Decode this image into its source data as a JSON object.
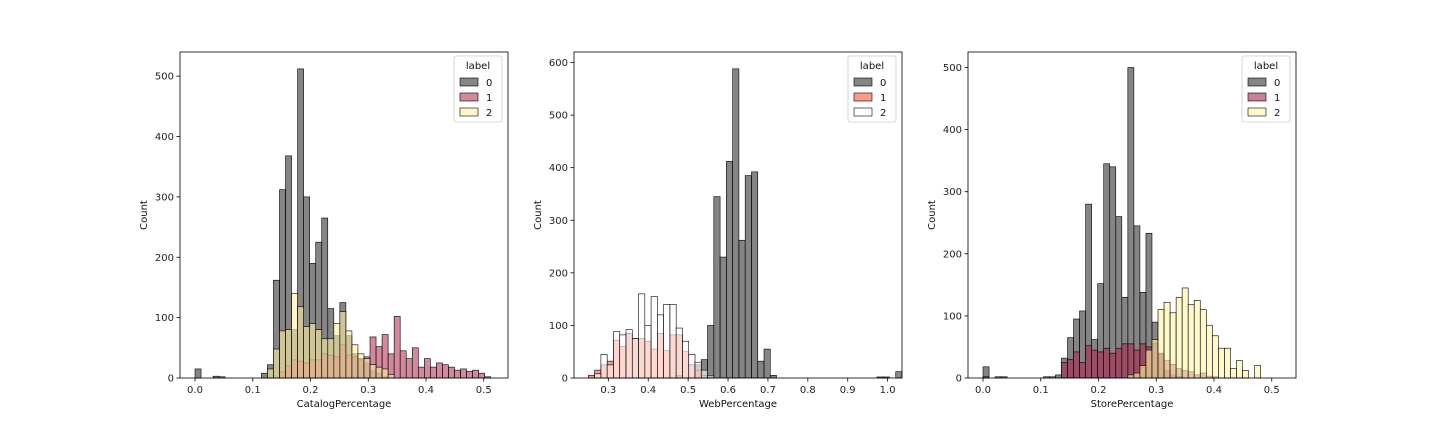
{
  "chart_data": [
    {
      "type": "bar",
      "xlabel": "CatalogPercentage",
      "ylabel": "Count",
      "xlim": [
        -0.026,
        0.542
      ],
      "ylim": [
        0,
        540
      ],
      "xticks": [
        0.0,
        0.1,
        0.2,
        0.3,
        0.4,
        0.5
      ],
      "xtick_labels": [
        "0.0",
        "0.1",
        "0.2",
        "0.3",
        "0.4",
        "0.5"
      ],
      "yticks": [
        0,
        100,
        200,
        300,
        400,
        500
      ],
      "ytick_labels": [
        "0",
        "100",
        "200",
        "300",
        "400",
        "500"
      ],
      "bin_start": 0.0,
      "bin_width": 0.01045,
      "legend": {
        "title": "label",
        "placement": "top-right",
        "entries": [
          "0",
          "1",
          "2"
        ]
      },
      "series": [
        {
          "name": "0",
          "color": "#333333",
          "values": [
            15,
            0,
            0,
            3,
            2,
            0,
            0,
            0,
            0,
            0,
            0,
            8,
            22,
            162,
            312,
            368,
            80,
            512,
            300,
            190,
            225,
            265,
            115,
            70,
            125,
            70,
            40,
            32,
            25,
            12,
            8,
            2,
            0,
            0,
            0,
            0,
            0,
            0,
            0,
            0,
            0,
            0,
            0,
            0,
            0,
            0,
            0,
            0,
            0,
            0
          ]
        },
        {
          "name": "1",
          "color": "#b5385a",
          "values": [
            0,
            0,
            0,
            0,
            0,
            0,
            0,
            0,
            0,
            0,
            0,
            0,
            0,
            0,
            10,
            20,
            30,
            28,
            25,
            30,
            30,
            40,
            38,
            35,
            55,
            38,
            35,
            30,
            35,
            68,
            52,
            72,
            40,
            102,
            45,
            32,
            50,
            18,
            32,
            18,
            25,
            22,
            18,
            13,
            15,
            11,
            13,
            8,
            2,
            0
          ]
        },
        {
          "name": "2",
          "color": "#fff2a8",
          "values": [
            0,
            0,
            0,
            0,
            0,
            0,
            0,
            0,
            0,
            0,
            0,
            0,
            15,
            48,
            78,
            80,
            140,
            118,
            85,
            90,
            80,
            65,
            65,
            90,
            110,
            78,
            55,
            40,
            32,
            22,
            18,
            15,
            6,
            0,
            0,
            0,
            0,
            0,
            0,
            0,
            0,
            0,
            0,
            0,
            0,
            0,
            0,
            0,
            0,
            0
          ]
        }
      ]
    },
    {
      "type": "bar",
      "xlabel": "WebPercentage",
      "ylabel": "Count",
      "xlim": [
        0.214,
        1.036
      ],
      "ylim": [
        0,
        620
      ],
      "xticks": [
        0.3,
        0.4,
        0.5,
        0.6,
        0.7,
        0.8,
        0.9,
        1.0
      ],
      "xtick_labels": [
        "0.3",
        "0.4",
        "0.5",
        "0.6",
        "0.7",
        "0.8",
        "0.9",
        "1.0"
      ],
      "yticks": [
        0,
        100,
        200,
        300,
        400,
        500,
        600
      ],
      "ytick_labels": [
        "0",
        "100",
        "200",
        "300",
        "400",
        "500",
        "600"
      ],
      "bin_start": 0.25,
      "bin_width": 0.01572,
      "legend": {
        "title": "label",
        "placement": "top-right",
        "entries": [
          "0",
          "1",
          "2"
        ]
      },
      "series": [
        {
          "name": "0",
          "color": "#333333",
          "values": [
            0,
            0,
            0,
            0,
            0,
            0,
            0,
            0,
            0,
            0,
            0,
            0,
            0,
            0,
            5,
            0,
            0,
            25,
            35,
            100,
            345,
            230,
            412,
            588,
            262,
            385,
            392,
            32,
            55,
            5,
            0,
            0,
            0,
            0,
            0,
            0,
            0,
            0,
            0,
            0,
            0,
            0,
            0,
            0,
            0,
            0,
            2,
            2,
            0,
            12
          ]
        },
        {
          "name": "1",
          "color": "#fa5a3c",
          "values": [
            5,
            15,
            25,
            32,
            72,
            60,
            85,
            75,
            75,
            70,
            55,
            85,
            52,
            82,
            82,
            50,
            25,
            15,
            5,
            2,
            0,
            0,
            0,
            0,
            0,
            0,
            0,
            0,
            0,
            0,
            0,
            0,
            0,
            0,
            0,
            0,
            0,
            0,
            0,
            0,
            0,
            0,
            0,
            0,
            0,
            0,
            0,
            0,
            0,
            0
          ]
        },
        {
          "name": "2",
          "color": "#ffffff",
          "values": [
            0,
            8,
            45,
            25,
            88,
            82,
            92,
            75,
            160,
            100,
            155,
            120,
            140,
            140,
            95,
            70,
            45,
            30,
            15,
            5,
            0,
            0,
            0,
            0,
            0,
            0,
            0,
            0,
            0,
            0,
            0,
            0,
            0,
            0,
            0,
            0,
            0,
            0,
            0,
            0,
            0,
            0,
            0,
            0,
            0,
            0,
            0,
            0,
            0,
            0
          ]
        }
      ]
    },
    {
      "type": "bar",
      "xlabel": "StorePercentage",
      "ylabel": "Count",
      "xlim": [
        -0.026,
        0.542
      ],
      "ylim": [
        0,
        525
      ],
      "xticks": [
        0.0,
        0.1,
        0.2,
        0.3,
        0.4,
        0.5
      ],
      "xtick_labels": [
        "0.0",
        "0.1",
        "0.2",
        "0.3",
        "0.4",
        "0.5"
      ],
      "yticks": [
        0,
        100,
        200,
        300,
        400,
        500
      ],
      "ytick_labels": [
        "0",
        "100",
        "200",
        "300",
        "400",
        "500"
      ],
      "bin_start": 0.0,
      "bin_width": 0.01045,
      "legend": {
        "title": "label",
        "placement": "top-right",
        "entries": [
          "0",
          "1",
          "2"
        ]
      },
      "series": [
        {
          "name": "0",
          "color": "#333333",
          "values": [
            18,
            0,
            2,
            2,
            0,
            0,
            0,
            0,
            0,
            0,
            2,
            2,
            5,
            32,
            65,
            95,
            108,
            280,
            62,
            152,
            345,
            340,
            260,
            130,
            500,
            245,
            138,
            233,
            90,
            38,
            12,
            5,
            2,
            0,
            0,
            0,
            0,
            0,
            0,
            0,
            0,
            0,
            0,
            0,
            0,
            0,
            0,
            0,
            0,
            0
          ]
        },
        {
          "name": "1",
          "color": "#a52a4f",
          "values": [
            2,
            0,
            0,
            0,
            0,
            0,
            0,
            0,
            0,
            0,
            0,
            0,
            0,
            25,
            30,
            42,
            25,
            52,
            45,
            42,
            48,
            40,
            48,
            55,
            55,
            45,
            55,
            50,
            55,
            40,
            28,
            22,
            15,
            12,
            10,
            5,
            8,
            3,
            2,
            0,
            0,
            0,
            0,
            0,
            0,
            0,
            0,
            0,
            0,
            0
          ]
        },
        {
          "name": "2",
          "color": "#fff4a4",
          "values": [
            0,
            0,
            0,
            0,
            0,
            0,
            0,
            0,
            0,
            0,
            0,
            0,
            0,
            0,
            0,
            0,
            0,
            0,
            0,
            0,
            0,
            0,
            0,
            0,
            5,
            8,
            20,
            45,
            62,
            110,
            122,
            105,
            130,
            145,
            118,
            125,
            110,
            85,
            68,
            48,
            48,
            15,
            28,
            12,
            0,
            20,
            0,
            0,
            0,
            0
          ]
        }
      ]
    }
  ]
}
